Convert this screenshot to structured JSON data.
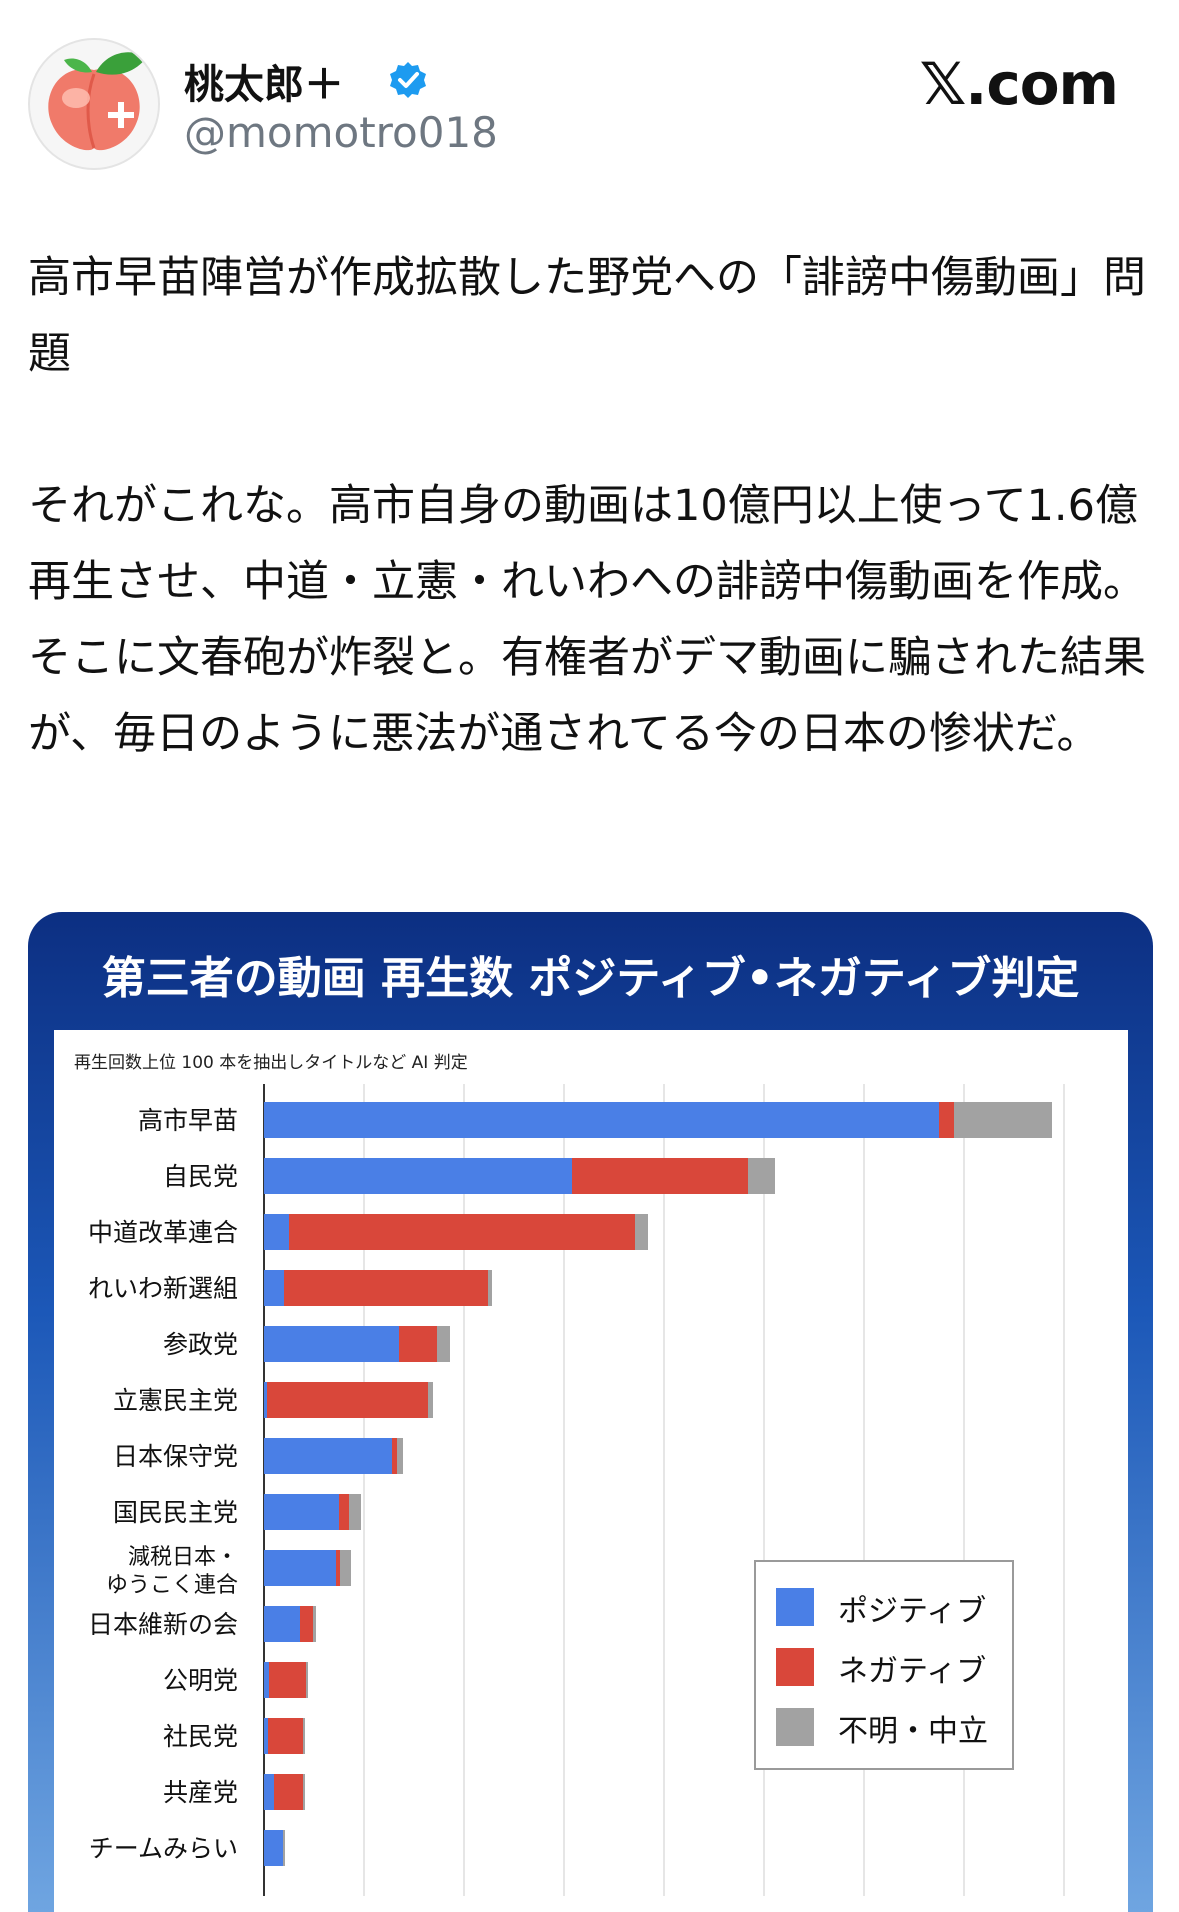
{
  "post": {
    "user_name": "桃太郎＋",
    "handle": "@momotro018",
    "site": "𝕏.com",
    "paragraph1": "高市早苗陣営が作成拡散した野党への「誹謗中傷動画」問題",
    "paragraph2": "それがこれな。高市自身の動画は10億円以上使って1.6億再生させ、中道・立憲・れいわへの誹謗中傷動画を作成。 そこに文春砲が炸裂と。有権者がデマ動画に騙された結果が、毎日のように悪法が通されてる今の日本の惨状だ。",
    "avatar_icon": "peach-icon",
    "verified_icon": "verified-badge-icon"
  },
  "card": {
    "title": "第三者の動画 再生数 ポジティブ•ネガティブ判定",
    "note": "再生回数上位 100 本を抽出しタイトルなど AI 判定"
  },
  "chart_data": {
    "type": "bar",
    "orientation": "horizontal",
    "stacked": true,
    "categories": [
      "高市早苗",
      "自民党",
      "中道改革連合",
      "れいわ新選組",
      "参政党",
      "立憲民主党",
      "日本保守党",
      "国民民主党",
      "減税日本・ゆうこく連合",
      "日本維新の会",
      "公明党",
      "社民党",
      "共産党",
      "チームみらい"
    ],
    "series": [
      {
        "name": "ポジティブ",
        "color": "#4a7fe6",
        "values": [
          67.5,
          30.8,
          2.5,
          2.0,
          13.5,
          0.3,
          12.8,
          7.5,
          7.2,
          3.6,
          0.5,
          0.4,
          1.0,
          1.9
        ]
      },
      {
        "name": "ネガティブ",
        "color": "#d9473a",
        "values": [
          1.5,
          17.6,
          34.6,
          20.4,
          3.8,
          16.1,
          0.5,
          1.0,
          0.4,
          1.3,
          3.7,
          3.5,
          2.9,
          0.0
        ]
      },
      {
        "name": "不明・中立",
        "color": "#a2a2a2",
        "values": [
          9.8,
          2.7,
          1.3,
          0.4,
          1.3,
          0.5,
          0.6,
          1.2,
          1.1,
          0.3,
          0.2,
          0.2,
          0.2,
          0.2
        ]
      }
    ],
    "xlim": [
      0,
      80
    ],
    "grid": true,
    "legend_position": "bottom-right"
  }
}
